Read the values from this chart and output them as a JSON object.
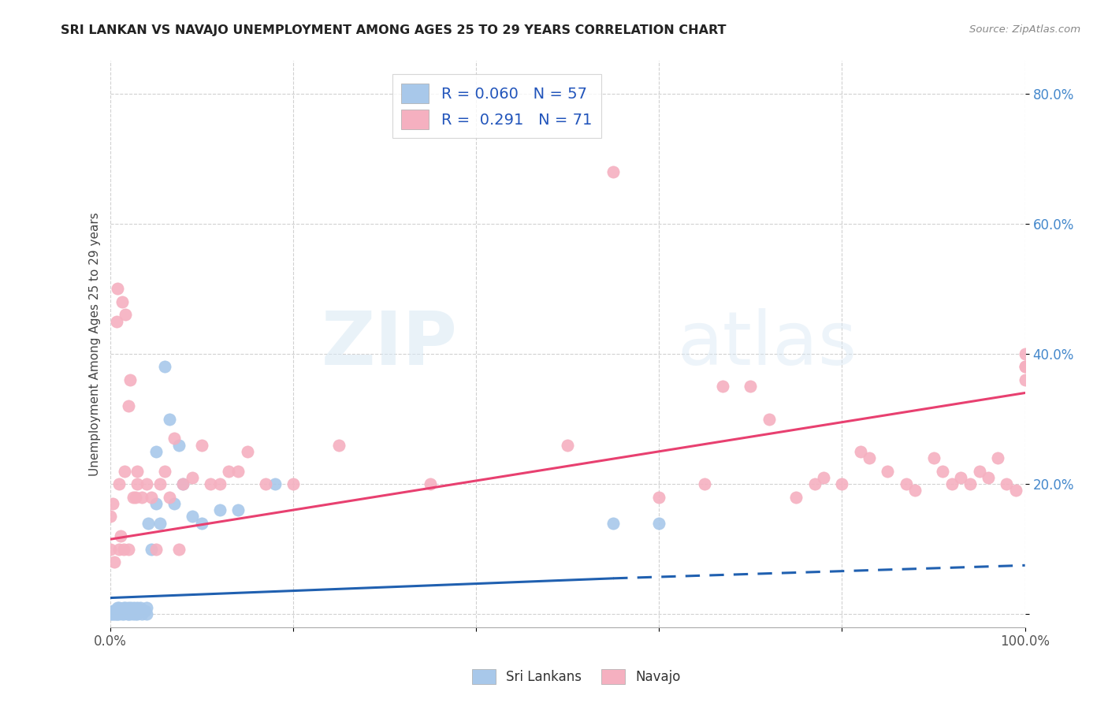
{
  "title": "SRI LANKAN VS NAVAJO UNEMPLOYMENT AMONG AGES 25 TO 29 YEARS CORRELATION CHART",
  "source": "Source: ZipAtlas.com",
  "ylabel": "Unemployment Among Ages 25 to 29 years",
  "xlim": [
    0.0,
    1.0
  ],
  "ylim": [
    -0.02,
    0.85
  ],
  "x_ticks": [
    0.0,
    1.0
  ],
  "x_tick_labels": [
    "0.0%",
    "100.0%"
  ],
  "y_ticks": [
    0.0,
    0.2,
    0.4,
    0.6,
    0.8
  ],
  "y_tick_labels": [
    "",
    "20.0%",
    "40.0%",
    "60.0%",
    "80.0%"
  ],
  "sri_lankan_color": "#a8c8ea",
  "navajo_color": "#f5b0c0",
  "sri_lankan_line_color": "#2060b0",
  "navajo_line_color": "#e84070",
  "sri_lankan_R": 0.06,
  "sri_lankan_N": 57,
  "navajo_R": 0.291,
  "navajo_N": 71,
  "watermark_zip": "ZIP",
  "watermark_atlas": "atlas",
  "sl_line_start_x": 0.0,
  "sl_line_start_y": 0.025,
  "sl_line_solid_end_x": 0.55,
  "sl_line_solid_end_y": 0.055,
  "sl_line_end_x": 1.0,
  "sl_line_end_y": 0.075,
  "nv_line_start_x": 0.0,
  "nv_line_start_y": 0.115,
  "nv_line_end_x": 1.0,
  "nv_line_end_y": 0.34,
  "sri_lankans_x": [
    0.0,
    0.002,
    0.003,
    0.004,
    0.005,
    0.006,
    0.007,
    0.008,
    0.008,
    0.009,
    0.01,
    0.01,
    0.01,
    0.012,
    0.013,
    0.014,
    0.015,
    0.015,
    0.016,
    0.017,
    0.018,
    0.019,
    0.02,
    0.02,
    0.021,
    0.022,
    0.023,
    0.025,
    0.025,
    0.026,
    0.027,
    0.028,
    0.03,
    0.03,
    0.032,
    0.033,
    0.035,
    0.038,
    0.04,
    0.04,
    0.042,
    0.045,
    0.05,
    0.05,
    0.055,
    0.06,
    0.065,
    0.07,
    0.075,
    0.08,
    0.09,
    0.1,
    0.12,
    0.14,
    0.18,
    0.55,
    0.6
  ],
  "sri_lankans_y": [
    0.0,
    0.0,
    0.005,
    0.0,
    0.005,
    0.0,
    0.0,
    0.0,
    0.01,
    0.005,
    0.0,
    0.005,
    0.01,
    0.005,
    0.0,
    0.005,
    0.0,
    0.01,
    0.005,
    0.01,
    0.005,
    0.0,
    0.0,
    0.01,
    0.005,
    0.0,
    0.01,
    0.005,
    0.0,
    0.01,
    0.005,
    0.0,
    0.0,
    0.01,
    0.005,
    0.01,
    0.0,
    0.005,
    0.0,
    0.01,
    0.14,
    0.1,
    0.17,
    0.25,
    0.14,
    0.38,
    0.3,
    0.17,
    0.26,
    0.2,
    0.15,
    0.14,
    0.16,
    0.16,
    0.2,
    0.14,
    0.14
  ],
  "navajo_x": [
    0.0,
    0.0,
    0.003,
    0.005,
    0.007,
    0.008,
    0.01,
    0.01,
    0.012,
    0.013,
    0.015,
    0.016,
    0.017,
    0.02,
    0.02,
    0.022,
    0.025,
    0.028,
    0.03,
    0.03,
    0.035,
    0.04,
    0.045,
    0.05,
    0.055,
    0.06,
    0.065,
    0.07,
    0.075,
    0.08,
    0.09,
    0.1,
    0.11,
    0.12,
    0.13,
    0.14,
    0.15,
    0.17,
    0.2,
    0.25,
    0.35,
    0.5,
    0.55,
    0.6,
    0.65,
    0.67,
    0.7,
    0.72,
    0.75,
    0.77,
    0.78,
    0.8,
    0.82,
    0.83,
    0.85,
    0.87,
    0.88,
    0.9,
    0.91,
    0.92,
    0.93,
    0.94,
    0.95,
    0.96,
    0.97,
    0.98,
    0.99,
    1.0,
    1.0,
    1.0,
    1.0
  ],
  "navajo_y": [
    0.1,
    0.15,
    0.17,
    0.08,
    0.45,
    0.5,
    0.1,
    0.2,
    0.12,
    0.48,
    0.1,
    0.22,
    0.46,
    0.1,
    0.32,
    0.36,
    0.18,
    0.18,
    0.2,
    0.22,
    0.18,
    0.2,
    0.18,
    0.1,
    0.2,
    0.22,
    0.18,
    0.27,
    0.1,
    0.2,
    0.21,
    0.26,
    0.2,
    0.2,
    0.22,
    0.22,
    0.25,
    0.2,
    0.2,
    0.26,
    0.2,
    0.26,
    0.68,
    0.18,
    0.2,
    0.35,
    0.35,
    0.3,
    0.18,
    0.2,
    0.21,
    0.2,
    0.25,
    0.24,
    0.22,
    0.2,
    0.19,
    0.24,
    0.22,
    0.2,
    0.21,
    0.2,
    0.22,
    0.21,
    0.24,
    0.2,
    0.19,
    0.38,
    0.36,
    0.4,
    0.38
  ]
}
